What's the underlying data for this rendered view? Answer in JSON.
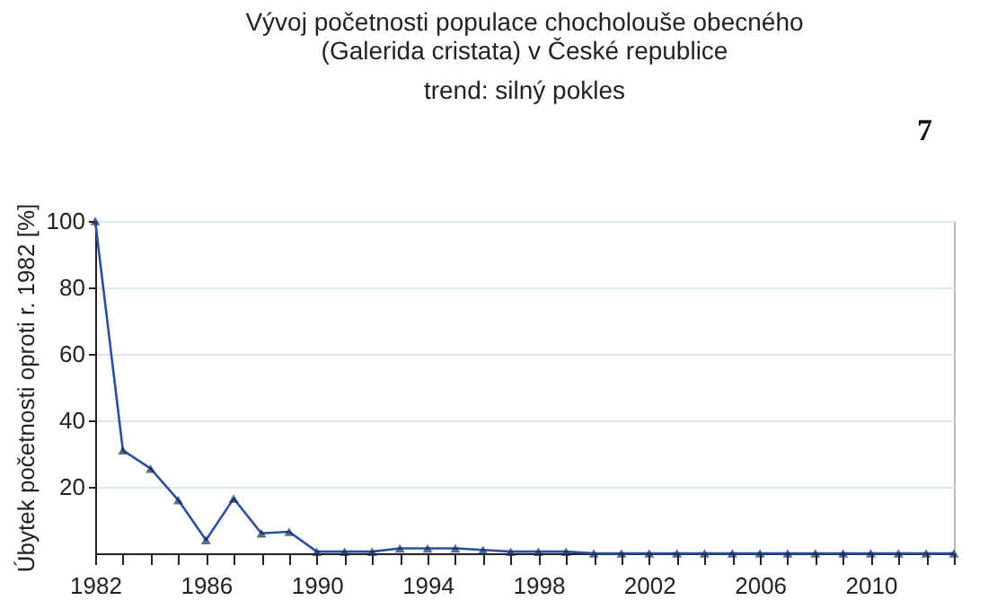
{
  "chart_data": {
    "type": "line",
    "title": [
      "Vývoj početnosti populace chocholouše obecného",
      "(Galerida cristata) v České republice"
    ],
    "subtitle": "trend: silný pokles",
    "ylabel": "Úbytek početnosti oproti r. 1982 [%]",
    "annotations": [
      "7"
    ],
    "x": [
      1982,
      1983,
      1984,
      1985,
      1986,
      1987,
      1988,
      1989,
      1990,
      1991,
      1992,
      1993,
      1994,
      1995,
      1996,
      1997,
      1998,
      1999,
      2000,
      2001,
      2002,
      2003,
      2004,
      2005,
      2006,
      2007,
      2008,
      2009,
      2010,
      2011,
      2012,
      2013
    ],
    "series": [
      {
        "color": "#2b4f9e",
        "values": [
          100,
          31,
          25.5,
          16,
          4,
          16.5,
          6,
          6.5,
          0.5,
          0.5,
          0.5,
          1.5,
          1.5,
          1.5,
          1,
          0.5,
          0.5,
          0.5,
          0,
          0,
          0,
          0,
          0,
          0,
          0,
          0,
          0,
          0,
          0,
          0,
          0,
          0
        ]
      }
    ],
    "xlim": [
      1982,
      2013
    ],
    "xticks": [
      1982,
      {
        "value": 1983,
        "label": null
      },
      {
        "value": 1984,
        "label": null
      },
      {
        "value": 1985,
        "label": null
      },
      1986,
      {
        "value": 1987,
        "label": null
      },
      {
        "value": 1988,
        "label": null
      },
      {
        "value": 1989,
        "label": null
      },
      1990,
      {
        "value": 1991,
        "label": null
      },
      {
        "value": 1992,
        "label": null
      },
      {
        "value": 1993,
        "label": null
      },
      1994,
      {
        "value": 1995,
        "label": null
      },
      {
        "value": 1996,
        "label": null
      },
      {
        "value": 1997,
        "label": null
      },
      1998,
      {
        "value": 1999,
        "label": null
      },
      {
        "value": 2000,
        "label": null
      },
      {
        "value": 2001,
        "label": null
      },
      2002,
      {
        "value": 2003,
        "label": null
      },
      {
        "value": 2004,
        "label": null
      },
      {
        "value": 2005,
        "label": null
      },
      2006,
      {
        "value": 2007,
        "label": null
      },
      {
        "value": 2008,
        "label": null
      },
      {
        "value": 2009,
        "label": null
      },
      2010,
      {
        "value": 2011,
        "label": null
      },
      {
        "value": 2012,
        "label": null
      },
      {
        "value": 2013,
        "label": null
      }
    ],
    "ylim": [
      0,
      100
    ],
    "yticks": [
      20,
      40,
      60,
      80,
      100
    ],
    "grid": "y",
    "marker": "triangle",
    "line_style": "solid",
    "legend": false
  }
}
